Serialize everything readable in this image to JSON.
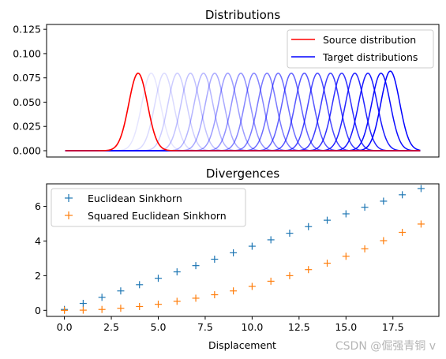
{
  "chart_data": [
    {
      "type": "line",
      "title": "Distributions",
      "xlabel": "",
      "ylabel": "",
      "xlim": [
        -1.0,
        20.0
      ],
      "ylim": [
        -0.0065,
        0.13
      ],
      "yticks": [
        0.0,
        0.025,
        0.05,
        0.075,
        0.1,
        0.125
      ],
      "ytick_labels": [
        "0.000",
        "0.025",
        "0.050",
        "0.075",
        "0.100",
        "0.125"
      ],
      "x_ticks_visible": false,
      "grid": false,
      "legend": {
        "placement": "top-right",
        "entries": [
          "Source distribution",
          "Target distributions"
        ]
      },
      "domain": [
        0,
        19
      ],
      "source": {
        "name": "Source distribution",
        "mean": 3.9,
        "sigma": 0.5,
        "peak": 0.0798,
        "color": "#ff0000"
      },
      "targets": {
        "name": "Target distributions",
        "means": [
          4.6,
          5.3,
          6.0,
          6.7,
          7.4,
          8.0,
          8.7,
          9.4,
          10.1,
          10.8,
          11.4,
          12.1,
          12.8,
          13.5,
          14.2,
          14.8,
          15.5,
          16.2,
          16.9,
          17.4
        ],
        "sigma": 0.5,
        "peak": 0.0798,
        "last_peak": 0.082,
        "color": "#0000ff"
      }
    },
    {
      "type": "scatter",
      "title": "Divergences",
      "xlabel": "Displacement",
      "ylabel": "",
      "xlim": [
        -0.95,
        19.95
      ],
      "ylim": [
        -0.35,
        7.3
      ],
      "xticks": [
        0.0,
        2.5,
        5.0,
        7.5,
        10.0,
        12.5,
        15.0,
        17.5
      ],
      "xtick_labels": [
        "0.0",
        "2.5",
        "5.0",
        "7.5",
        "10.0",
        "12.5",
        "15.0",
        "17.5"
      ],
      "yticks": [
        0,
        2,
        4,
        6
      ],
      "ytick_labels": [
        "0",
        "2",
        "4",
        "6"
      ],
      "grid": false,
      "legend": {
        "placement": "top-left",
        "entries": [
          "Euclidean Sinkhorn",
          "Squared Euclidean Sinkhorn"
        ]
      },
      "x": [
        0,
        1,
        2,
        3,
        4,
        5,
        6,
        7,
        8,
        9,
        10,
        11,
        12,
        13,
        14,
        15,
        16,
        17,
        18,
        19
      ],
      "series": [
        {
          "name": "Euclidean Sinkhorn",
          "color": "#1f77b4",
          "marker": "+",
          "values": [
            0.05,
            0.4,
            0.75,
            1.12,
            1.48,
            1.85,
            2.22,
            2.58,
            2.95,
            3.32,
            3.7,
            4.07,
            4.45,
            4.83,
            5.2,
            5.57,
            5.95,
            6.3,
            6.67,
            7.03
          ]
        },
        {
          "name": "Squared Euclidean Sinkhorn",
          "color": "#ff7f0e",
          "marker": "+",
          "values": [
            0.0,
            0.01,
            0.05,
            0.12,
            0.22,
            0.35,
            0.52,
            0.7,
            0.9,
            1.12,
            1.38,
            1.68,
            2.0,
            2.35,
            2.72,
            3.12,
            3.55,
            4.02,
            4.5,
            4.98
          ]
        }
      ]
    }
  ],
  "watermark": "CSDN @倔强青铜 v"
}
